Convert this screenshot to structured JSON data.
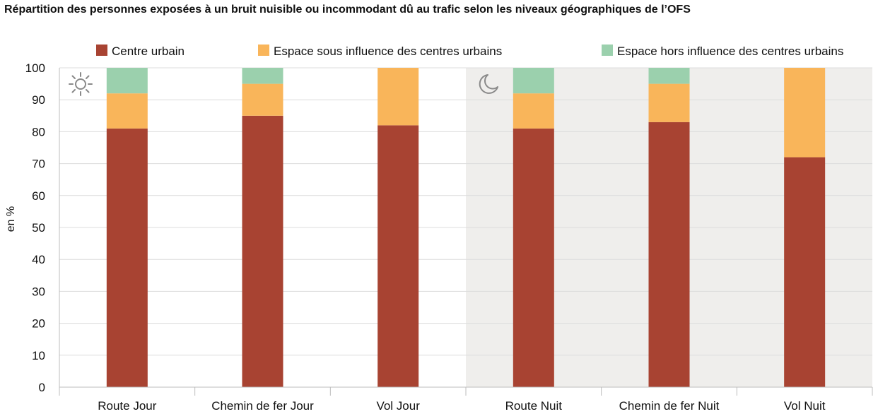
{
  "chart_data": {
    "type": "bar",
    "stacked": true,
    "title": "Répartition des personnes exposées à un bruit nuisible ou incommodant dû au trafic selon les niveaux géographiques de l’OFS",
    "ylabel": "en %",
    "xlabel": "",
    "ylim": [
      0,
      100
    ],
    "yticks": [
      0,
      10,
      20,
      30,
      40,
      50,
      60,
      70,
      80,
      90,
      100
    ],
    "grid": true,
    "legend_position": "top",
    "categories": [
      "Route Jour",
      "Chemin de fer Jour",
      "Vol Jour",
      "Route Nuit",
      "Chemin de fer Nuit",
      "Vol Nuit"
    ],
    "series": [
      {
        "name": "Centre urbain",
        "color": "#a84332",
        "values": [
          81,
          85,
          82,
          81,
          83,
          72
        ]
      },
      {
        "name": "Espace sous influence des centres urbains",
        "color": "#f9b55a",
        "values": [
          11,
          10,
          18,
          11,
          12,
          28
        ]
      },
      {
        "name": "Espace hors influence des centres urbains",
        "color": "#9bd0ad",
        "values": [
          8,
          5,
          0,
          8,
          5,
          0
        ]
      }
    ],
    "night_background_color": "#efeeec",
    "icons": [
      "sun-icon",
      "moon-icon"
    ]
  }
}
